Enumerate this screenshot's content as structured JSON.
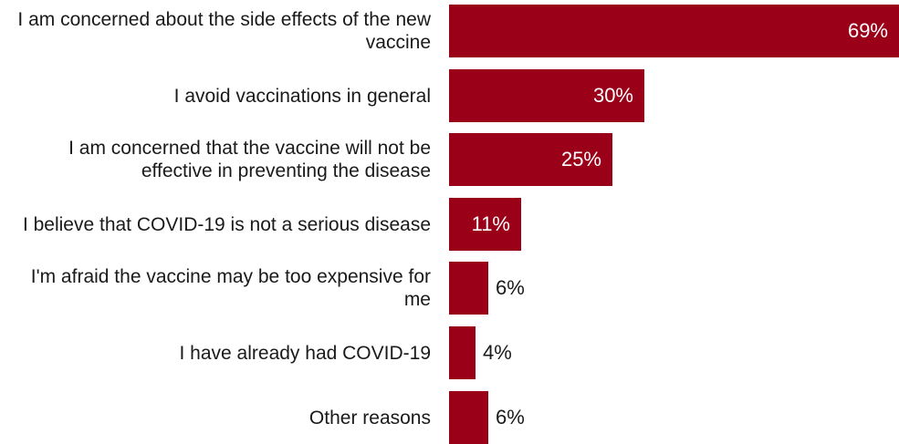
{
  "chart_data": {
    "type": "bar",
    "orientation": "horizontal",
    "categories": [
      "I am concerned about the side effects of the new vaccine",
      "I avoid vaccinations in general",
      "I am concerned that the vaccine will not be effective in preventing the disease",
      "I believe that COVID-19 is not a serious disease",
      "I'm afraid the vaccine may be too expensive for me",
      "I have already had COVID-19",
      "Other reasons"
    ],
    "values": [
      69,
      30,
      25,
      11,
      6,
      4,
      6
    ],
    "value_labels": [
      "69%",
      "30%",
      "25%",
      "11%",
      "6%",
      "4%",
      "6%"
    ],
    "unit": "%",
    "xlim": [
      0,
      69
    ],
    "title": "",
    "xlabel": "",
    "ylabel": "",
    "grid": false,
    "legend": "none",
    "bar_color": "#9b0019"
  }
}
